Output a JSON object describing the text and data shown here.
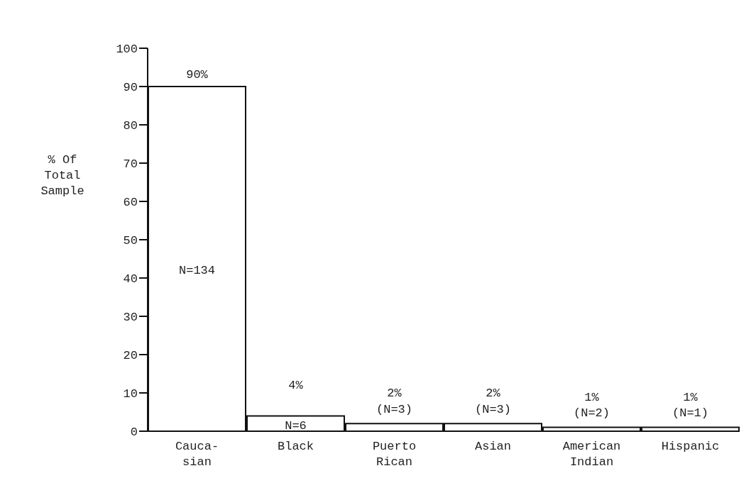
{
  "chart_data": {
    "type": "bar",
    "ylabel": "% Of\nTotal\nSample",
    "categories": [
      "Cauca-\nsian",
      "Black",
      "Puerto\nRican",
      "Asian",
      "American\nIndian",
      "Hispanic"
    ],
    "values": [
      90,
      4,
      2,
      2,
      1,
      1
    ],
    "color": "#ffffff",
    "value_labels": [
      "90%",
      "4%",
      "2%",
      "2%",
      "1%",
      "1%"
    ],
    "ylim": [
      0,
      100
    ],
    "yticks": [
      0,
      10,
      20,
      30,
      40,
      50,
      60,
      70,
      80,
      90,
      100
    ],
    "grid": false,
    "annotations": [
      "N=134",
      "N=6",
      "(N=3)",
      "(N=3)",
      "(N=2)",
      "(N=1)"
    ]
  }
}
